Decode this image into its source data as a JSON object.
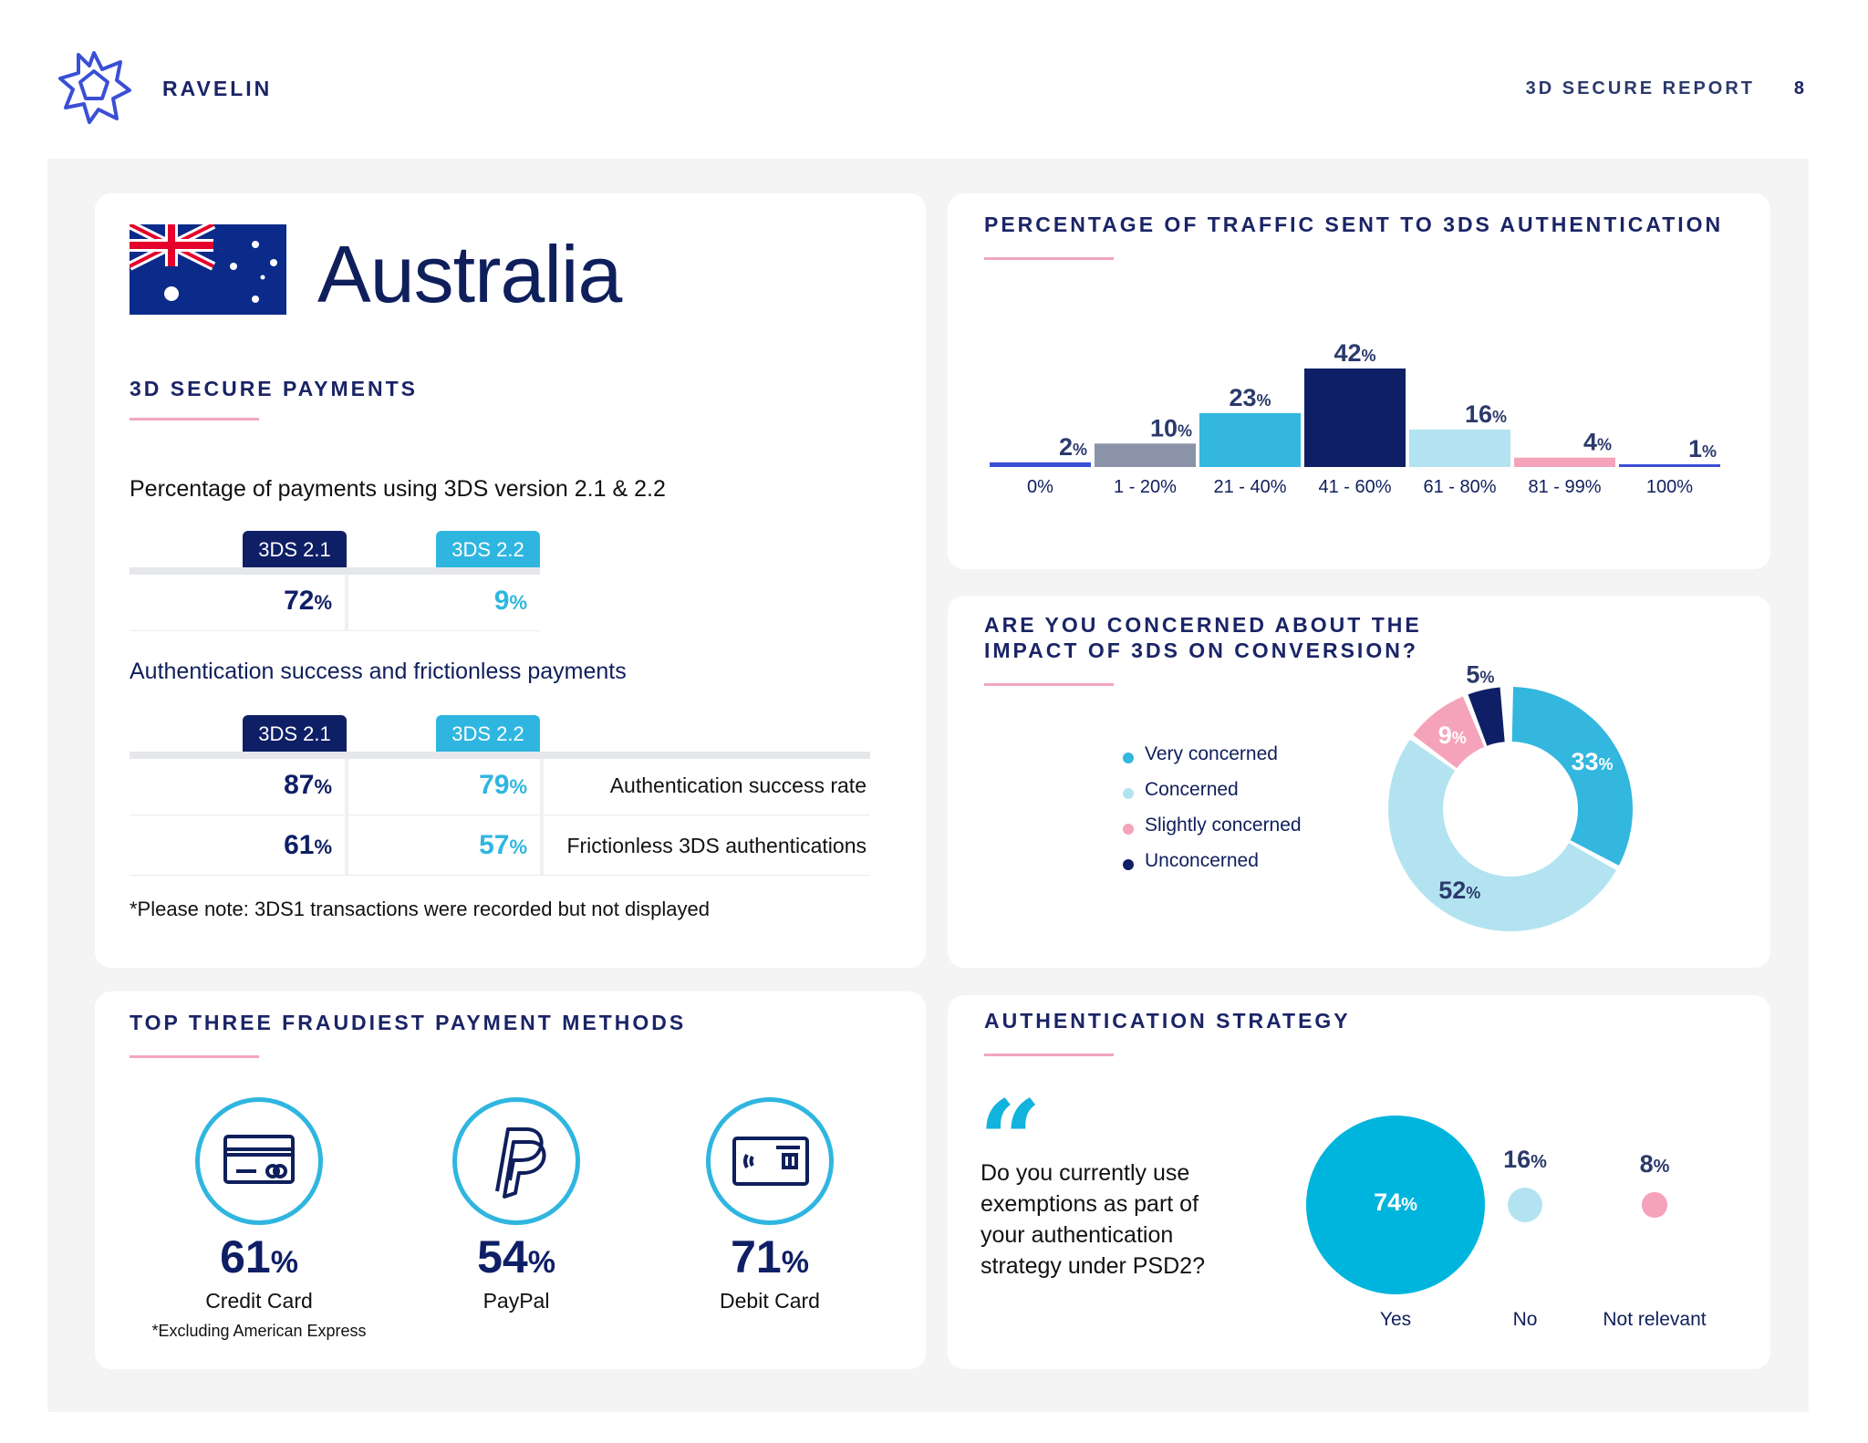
{
  "header": {
    "brand": "RAVELIN",
    "report": "3D SECURE REPORT",
    "page": "8"
  },
  "country": "Australia",
  "secure_payments": {
    "title": "3D SECURE PAYMENTS",
    "usage_title": "Percentage of payments using 3DS version 2.1 & 2.2",
    "v21_label": "3DS 2.1",
    "v22_label": "3DS 2.2",
    "usage": {
      "v21": "72",
      "v22": "9"
    },
    "auth_title": "Authentication success and frictionless payments",
    "rows": [
      {
        "v21": "87",
        "v22": "79",
        "label": "Authentication success rate"
      },
      {
        "v21": "61",
        "v22": "57",
        "label": "Frictionless 3DS authentications"
      }
    ],
    "note": "*Please note: 3DS1 transactions were recorded but not displayed",
    "pct": "%"
  },
  "fraud": {
    "title": "TOP THREE FRAUDIEST PAYMENT METHODS",
    "items": [
      {
        "value": "61",
        "label": "Credit Card",
        "note": "*Excluding American Express",
        "icon": "credit-card-icon"
      },
      {
        "value": "54",
        "label": "PayPal",
        "note": "",
        "icon": "paypal-icon"
      },
      {
        "value": "71",
        "label": "Debit Card",
        "note": "",
        "icon": "debit-card-icon"
      }
    ]
  },
  "chart_data": [
    {
      "type": "bar",
      "title": "PERCENTAGE OF TRAFFIC SENT TO 3DS AUTHENTICATION",
      "categories": [
        "0%",
        "1 - 20%",
        "21 - 40%",
        "41 - 60%",
        "61 - 80%",
        "81 - 99%",
        "100%"
      ],
      "values": [
        2,
        10,
        23,
        42,
        16,
        4,
        1
      ],
      "colors": [
        "#3a4fd6",
        "#8a93a8",
        "#33b7df",
        "#0f1f66",
        "#b3e3f1",
        "#f5a3bb",
        "#3a4fd6"
      ],
      "ylim": [
        0,
        42
      ]
    },
    {
      "type": "pie",
      "title": "ARE YOU CONCERNED ABOUT THE IMPACT OF 3DS ON CONVERSION?",
      "labels": [
        "Very concerned",
        "Concerned",
        "Slightly concerned",
        "Unconcerned"
      ],
      "values": [
        33,
        52,
        9,
        5
      ],
      "colors": [
        "#33b7df",
        "#b3e3f1",
        "#f5a3bb",
        "#0f1f66"
      ]
    },
    {
      "type": "scatter",
      "title": "AUTHENTICATION STRATEGY",
      "question": "Do you currently use exemptions as part of your authentication strategy under PSD2?",
      "categories": [
        "Yes",
        "No",
        "Not relevant"
      ],
      "values": [
        74,
        16,
        8
      ],
      "colors": [
        "#00b5dd",
        "#b3e3f1",
        "#f5a3bb"
      ]
    }
  ]
}
